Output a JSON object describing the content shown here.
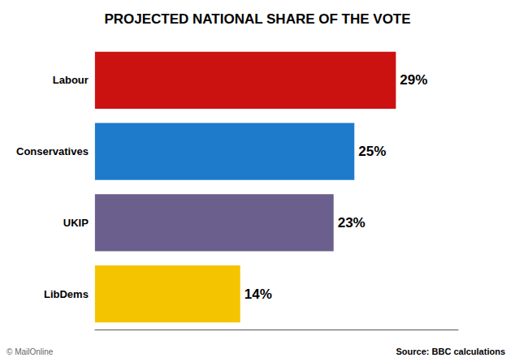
{
  "chart_data": {
    "type": "bar",
    "orientation": "horizontal",
    "title": "PROJECTED NATIONAL SHARE OF THE VOTE",
    "categories": [
      "Labour",
      "Conservatives",
      "UKIP",
      "LibDems"
    ],
    "values": [
      29,
      25,
      23,
      14
    ],
    "value_labels": [
      "29%",
      "25%",
      "23%",
      "14%"
    ],
    "data_labels": true,
    "colors": [
      "#cc1111",
      "#1e7bcc",
      "#6b5f8e",
      "#f5c400"
    ],
    "xlim": [
      0,
      35
    ],
    "grid": false,
    "tick_labels": "y",
    "annotations": [
      "Source: BBC calculations",
      "© MailOnline"
    ]
  }
}
